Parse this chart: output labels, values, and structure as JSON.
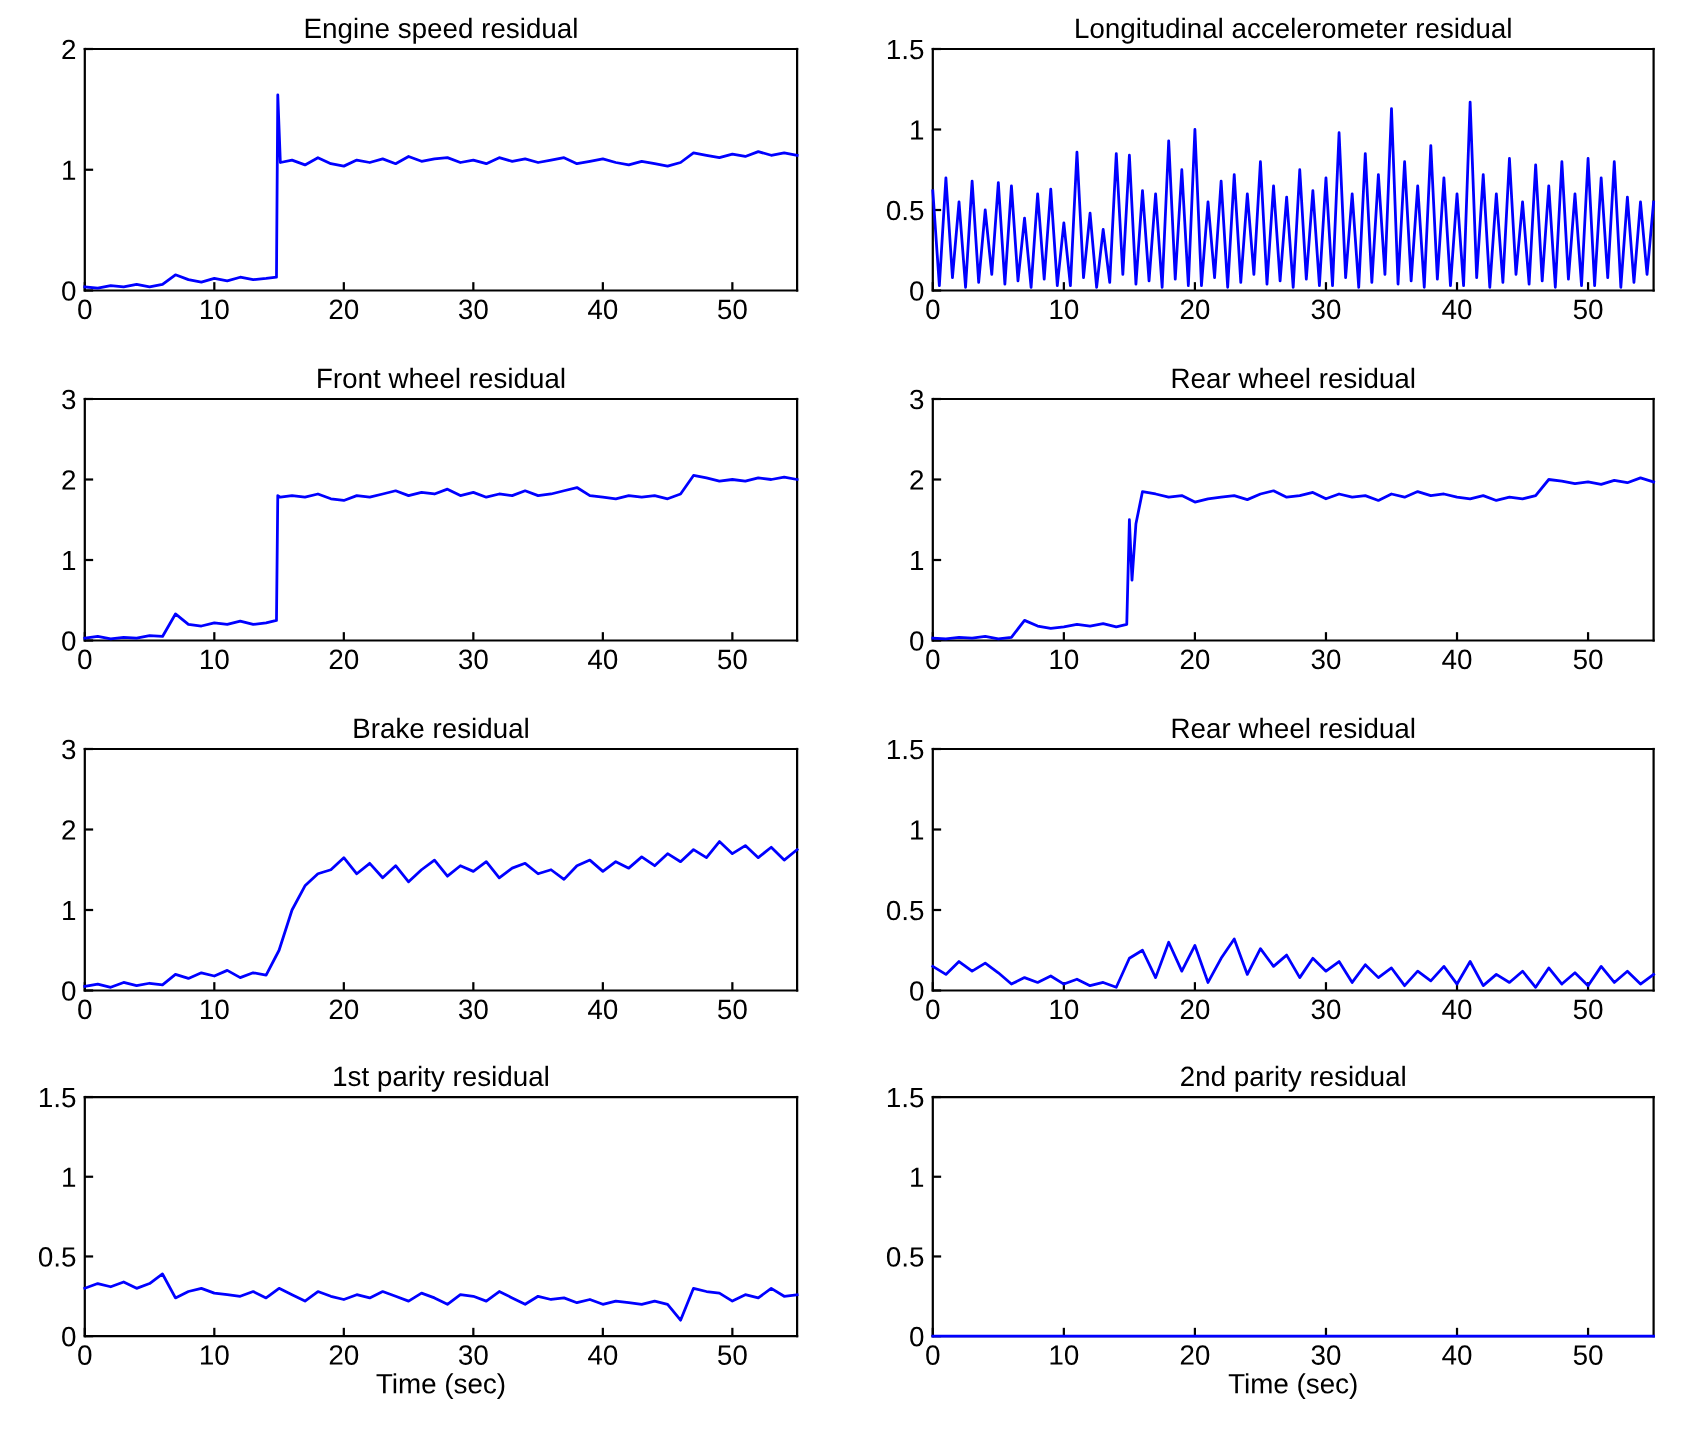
{
  "chart_data": [
    {
      "type": "line",
      "title": "Engine speed residual",
      "xlim": [
        0,
        55
      ],
      "ylim": [
        0,
        2
      ],
      "xticks": [
        0,
        10,
        20,
        30,
        40,
        50
      ],
      "yticks": [
        0,
        1,
        2
      ],
      "series": [
        {
          "color": "#0000ff",
          "x": [
            0,
            1,
            2,
            3,
            4,
            5,
            6,
            7,
            8,
            9,
            10,
            11,
            12,
            13,
            14,
            14.8,
            14.9,
            15.1,
            16,
            17,
            18,
            19,
            20,
            21,
            22,
            23,
            24,
            25,
            26,
            27,
            28,
            29,
            30,
            31,
            32,
            33,
            34,
            35,
            36,
            37,
            38,
            39,
            40,
            41,
            42,
            43,
            44,
            45,
            46,
            47,
            48,
            49,
            50,
            51,
            52,
            53,
            54,
            55
          ],
          "values": [
            0.03,
            0.02,
            0.04,
            0.03,
            0.05,
            0.03,
            0.05,
            0.13,
            0.09,
            0.07,
            0.1,
            0.08,
            0.11,
            0.09,
            0.1,
            0.11,
            1.62,
            1.06,
            1.08,
            1.04,
            1.1,
            1.05,
            1.03,
            1.08,
            1.06,
            1.09,
            1.05,
            1.11,
            1.07,
            1.09,
            1.1,
            1.06,
            1.08,
            1.05,
            1.1,
            1.07,
            1.09,
            1.06,
            1.08,
            1.1,
            1.05,
            1.07,
            1.09,
            1.06,
            1.04,
            1.07,
            1.05,
            1.03,
            1.06,
            1.14,
            1.12,
            1.1,
            1.13,
            1.11,
            1.15,
            1.12,
            1.14,
            1.12
          ]
        }
      ]
    },
    {
      "type": "line",
      "title": "Longitudinal accelerometer residual",
      "xlim": [
        0,
        55
      ],
      "ylim": [
        0,
        1.5
      ],
      "xticks": [
        0,
        10,
        20,
        30,
        40,
        50
      ],
      "yticks": [
        0,
        0.5,
        1,
        1.5
      ],
      "series": [
        {
          "color": "#0000ff",
          "x": [
            0,
            0.5,
            1,
            1.5,
            2,
            2.5,
            3,
            3.5,
            4,
            4.5,
            5,
            5.5,
            6,
            6.5,
            7,
            7.5,
            8,
            8.5,
            9,
            9.5,
            10,
            10.5,
            11,
            11.5,
            12,
            12.5,
            13,
            13.5,
            14,
            14.5,
            15,
            15.5,
            16,
            16.5,
            17,
            17.5,
            18,
            18.5,
            19,
            19.5,
            20,
            20.5,
            21,
            21.5,
            22,
            22.5,
            23,
            23.5,
            24,
            24.5,
            25,
            25.5,
            26,
            26.5,
            27,
            27.5,
            28,
            28.5,
            29,
            29.5,
            30,
            30.5,
            31,
            31.5,
            32,
            32.5,
            33,
            33.5,
            34,
            34.5,
            35,
            35.5,
            36,
            36.5,
            37,
            37.5,
            38,
            38.5,
            39,
            39.5,
            40,
            40.5,
            41,
            41.5,
            42,
            42.5,
            43,
            43.5,
            44,
            44.5,
            45,
            45.5,
            46,
            46.5,
            47,
            47.5,
            48,
            48.5,
            49,
            49.5,
            50,
            50.5,
            51,
            51.5,
            52,
            52.5,
            53,
            53.5,
            54,
            54.5,
            55
          ],
          "values": [
            0.62,
            0.03,
            0.7,
            0.08,
            0.55,
            0.02,
            0.68,
            0.05,
            0.5,
            0.1,
            0.67,
            0.04,
            0.65,
            0.06,
            0.45,
            0.02,
            0.6,
            0.07,
            0.63,
            0.03,
            0.42,
            0.03,
            0.86,
            0.08,
            0.48,
            0.02,
            0.38,
            0.05,
            0.85,
            0.1,
            0.84,
            0.04,
            0.62,
            0.06,
            0.6,
            0.02,
            0.93,
            0.07,
            0.75,
            0.03,
            1.0,
            0.03,
            0.55,
            0.08,
            0.68,
            0.02,
            0.72,
            0.05,
            0.6,
            0.1,
            0.8,
            0.04,
            0.65,
            0.06,
            0.58,
            0.02,
            0.75,
            0.07,
            0.62,
            0.03,
            0.7,
            0.03,
            0.98,
            0.08,
            0.6,
            0.02,
            0.85,
            0.05,
            0.72,
            0.1,
            1.13,
            0.04,
            0.8,
            0.06,
            0.65,
            0.02,
            0.9,
            0.07,
            0.7,
            0.03,
            0.6,
            0.03,
            1.17,
            0.08,
            0.72,
            0.02,
            0.6,
            0.05,
            0.82,
            0.1,
            0.55,
            0.04,
            0.78,
            0.06,
            0.65,
            0.02,
            0.8,
            0.07,
            0.6,
            0.03,
            0.82,
            0.03,
            0.7,
            0.08,
            0.8,
            0.02,
            0.58,
            0.05,
            0.55,
            0.1,
            0.55
          ]
        }
      ]
    },
    {
      "type": "line",
      "title": "Front wheel residual",
      "xlim": [
        0,
        55
      ],
      "ylim": [
        0,
        3
      ],
      "xticks": [
        0,
        10,
        20,
        30,
        40,
        50
      ],
      "yticks": [
        0,
        1,
        2,
        3
      ],
      "series": [
        {
          "color": "#0000ff",
          "x": [
            0,
            1,
            2,
            3,
            4,
            5,
            6,
            7,
            8,
            9,
            10,
            11,
            12,
            13,
            14,
            14.8,
            14.9,
            15.1,
            16,
            17,
            18,
            19,
            20,
            21,
            22,
            23,
            24,
            25,
            26,
            27,
            28,
            29,
            30,
            31,
            32,
            33,
            34,
            35,
            36,
            37,
            38,
            39,
            40,
            41,
            42,
            43,
            44,
            45,
            46,
            47,
            48,
            49,
            50,
            51,
            52,
            53,
            54,
            55
          ],
          "values": [
            0.03,
            0.05,
            0.02,
            0.04,
            0.03,
            0.06,
            0.05,
            0.33,
            0.2,
            0.18,
            0.22,
            0.2,
            0.24,
            0.2,
            0.22,
            0.25,
            1.8,
            1.78,
            1.8,
            1.78,
            1.82,
            1.76,
            1.74,
            1.8,
            1.78,
            1.82,
            1.86,
            1.8,
            1.84,
            1.82,
            1.88,
            1.8,
            1.84,
            1.78,
            1.82,
            1.8,
            1.86,
            1.8,
            1.82,
            1.86,
            1.9,
            1.8,
            1.78,
            1.76,
            1.8,
            1.78,
            1.8,
            1.76,
            1.82,
            2.05,
            2.02,
            1.98,
            2.0,
            1.98,
            2.02,
            2.0,
            2.03,
            2.0
          ]
        }
      ]
    },
    {
      "type": "line",
      "title": "Rear wheel residual",
      "xlim": [
        0,
        55
      ],
      "ylim": [
        0,
        3
      ],
      "xticks": [
        0,
        10,
        20,
        30,
        40,
        50
      ],
      "yticks": [
        0,
        1,
        2,
        3
      ],
      "series": [
        {
          "color": "#0000ff",
          "x": [
            0,
            1,
            2,
            3,
            4,
            5,
            6,
            7,
            8,
            9,
            10,
            11,
            12,
            13,
            14,
            14.8,
            15,
            15.2,
            15.5,
            16,
            17,
            18,
            19,
            20,
            21,
            22,
            23,
            24,
            25,
            26,
            27,
            28,
            29,
            30,
            31,
            32,
            33,
            34,
            35,
            36,
            37,
            38,
            39,
            40,
            41,
            42,
            43,
            44,
            45,
            46,
            47,
            48,
            49,
            50,
            51,
            52,
            53,
            54,
            55
          ],
          "values": [
            0.03,
            0.02,
            0.04,
            0.03,
            0.05,
            0.02,
            0.04,
            0.25,
            0.18,
            0.15,
            0.17,
            0.2,
            0.18,
            0.21,
            0.17,
            0.2,
            1.5,
            0.75,
            1.45,
            1.85,
            1.82,
            1.78,
            1.8,
            1.72,
            1.76,
            1.78,
            1.8,
            1.75,
            1.82,
            1.86,
            1.78,
            1.8,
            1.84,
            1.76,
            1.82,
            1.78,
            1.8,
            1.74,
            1.82,
            1.78,
            1.85,
            1.8,
            1.82,
            1.78,
            1.76,
            1.8,
            1.74,
            1.78,
            1.76,
            1.8,
            2.0,
            1.98,
            1.95,
            1.97,
            1.94,
            1.99,
            1.96,
            2.02,
            1.97
          ]
        }
      ]
    },
    {
      "type": "line",
      "title": "Brake residual",
      "xlim": [
        0,
        55
      ],
      "ylim": [
        0,
        3
      ],
      "xticks": [
        0,
        10,
        20,
        30,
        40,
        50
      ],
      "yticks": [
        0,
        1,
        2,
        3
      ],
      "series": [
        {
          "color": "#0000ff",
          "x": [
            0,
            1,
            2,
            3,
            4,
            5,
            6,
            7,
            8,
            9,
            10,
            11,
            12,
            13,
            14,
            15,
            16,
            17,
            18,
            19,
            20,
            21,
            22,
            23,
            24,
            25,
            26,
            27,
            28,
            29,
            30,
            31,
            32,
            33,
            34,
            35,
            36,
            37,
            38,
            39,
            40,
            41,
            42,
            43,
            44,
            45,
            46,
            47,
            48,
            49,
            50,
            51,
            52,
            53,
            54,
            55
          ],
          "values": [
            0.05,
            0.08,
            0.04,
            0.1,
            0.06,
            0.09,
            0.07,
            0.2,
            0.15,
            0.22,
            0.18,
            0.25,
            0.16,
            0.22,
            0.19,
            0.5,
            1.0,
            1.3,
            1.45,
            1.5,
            1.65,
            1.45,
            1.58,
            1.4,
            1.55,
            1.35,
            1.5,
            1.62,
            1.42,
            1.55,
            1.48,
            1.6,
            1.4,
            1.52,
            1.58,
            1.45,
            1.5,
            1.38,
            1.55,
            1.62,
            1.48,
            1.6,
            1.52,
            1.66,
            1.55,
            1.7,
            1.6,
            1.75,
            1.65,
            1.85,
            1.7,
            1.8,
            1.65,
            1.78,
            1.62,
            1.75
          ]
        }
      ]
    },
    {
      "type": "line",
      "title": "Rear wheel residual",
      "xlim": [
        0,
        55
      ],
      "ylim": [
        0,
        1.5
      ],
      "xticks": [
        0,
        10,
        20,
        30,
        40,
        50
      ],
      "yticks": [
        0,
        0.5,
        1,
        1.5
      ],
      "series": [
        {
          "color": "#0000ff",
          "x": [
            0,
            1,
            2,
            3,
            4,
            5,
            6,
            7,
            8,
            9,
            10,
            11,
            12,
            13,
            14,
            15,
            16,
            17,
            18,
            19,
            20,
            21,
            22,
            23,
            24,
            25,
            26,
            27,
            28,
            29,
            30,
            31,
            32,
            33,
            34,
            35,
            36,
            37,
            38,
            39,
            40,
            41,
            42,
            43,
            44,
            45,
            46,
            47,
            48,
            49,
            50,
            51,
            52,
            53,
            54,
            55
          ],
          "values": [
            0.15,
            0.1,
            0.18,
            0.12,
            0.17,
            0.11,
            0.04,
            0.08,
            0.05,
            0.09,
            0.04,
            0.07,
            0.03,
            0.05,
            0.02,
            0.2,
            0.25,
            0.08,
            0.3,
            0.12,
            0.28,
            0.05,
            0.2,
            0.32,
            0.1,
            0.26,
            0.15,
            0.22,
            0.08,
            0.2,
            0.12,
            0.18,
            0.05,
            0.16,
            0.08,
            0.14,
            0.03,
            0.12,
            0.06,
            0.15,
            0.04,
            0.18,
            0.03,
            0.1,
            0.05,
            0.12,
            0.02,
            0.14,
            0.04,
            0.11,
            0.03,
            0.15,
            0.05,
            0.12,
            0.04,
            0.1
          ]
        }
      ]
    },
    {
      "type": "line",
      "title": "1st parity residual",
      "xlabel": "Time (sec)",
      "xlim": [
        0,
        55
      ],
      "ylim": [
        0,
        1.5
      ],
      "xticks": [
        0,
        10,
        20,
        30,
        40,
        50
      ],
      "yticks": [
        0,
        0.5,
        1,
        1.5
      ],
      "series": [
        {
          "color": "#0000ff",
          "x": [
            0,
            1,
            2,
            3,
            4,
            5,
            6,
            7,
            8,
            9,
            10,
            11,
            12,
            13,
            14,
            15,
            16,
            17,
            18,
            19,
            20,
            21,
            22,
            23,
            24,
            25,
            26,
            27,
            28,
            29,
            30,
            31,
            32,
            33,
            34,
            35,
            36,
            37,
            38,
            39,
            40,
            41,
            42,
            43,
            44,
            45,
            46,
            47,
            48,
            49,
            50,
            51,
            52,
            53,
            54,
            55
          ],
          "values": [
            0.3,
            0.33,
            0.31,
            0.34,
            0.3,
            0.33,
            0.39,
            0.24,
            0.28,
            0.3,
            0.27,
            0.26,
            0.25,
            0.28,
            0.24,
            0.3,
            0.26,
            0.22,
            0.28,
            0.25,
            0.23,
            0.26,
            0.24,
            0.28,
            0.25,
            0.22,
            0.27,
            0.24,
            0.2,
            0.26,
            0.25,
            0.22,
            0.28,
            0.24,
            0.2,
            0.25,
            0.23,
            0.24,
            0.21,
            0.23,
            0.2,
            0.22,
            0.21,
            0.2,
            0.22,
            0.2,
            0.1,
            0.3,
            0.28,
            0.27,
            0.22,
            0.26,
            0.24,
            0.3,
            0.25,
            0.26
          ]
        }
      ]
    },
    {
      "type": "line",
      "title": "2nd parity residual",
      "xlabel": "Time (sec)",
      "xlim": [
        0,
        55
      ],
      "ylim": [
        0,
        1.5
      ],
      "xticks": [
        0,
        10,
        20,
        30,
        40,
        50
      ],
      "yticks": [
        0,
        0.5,
        1,
        1.5
      ],
      "series": [
        {
          "color": "#0000ff",
          "x": [
            0,
            55
          ],
          "values": [
            0,
            0
          ]
        }
      ]
    }
  ]
}
